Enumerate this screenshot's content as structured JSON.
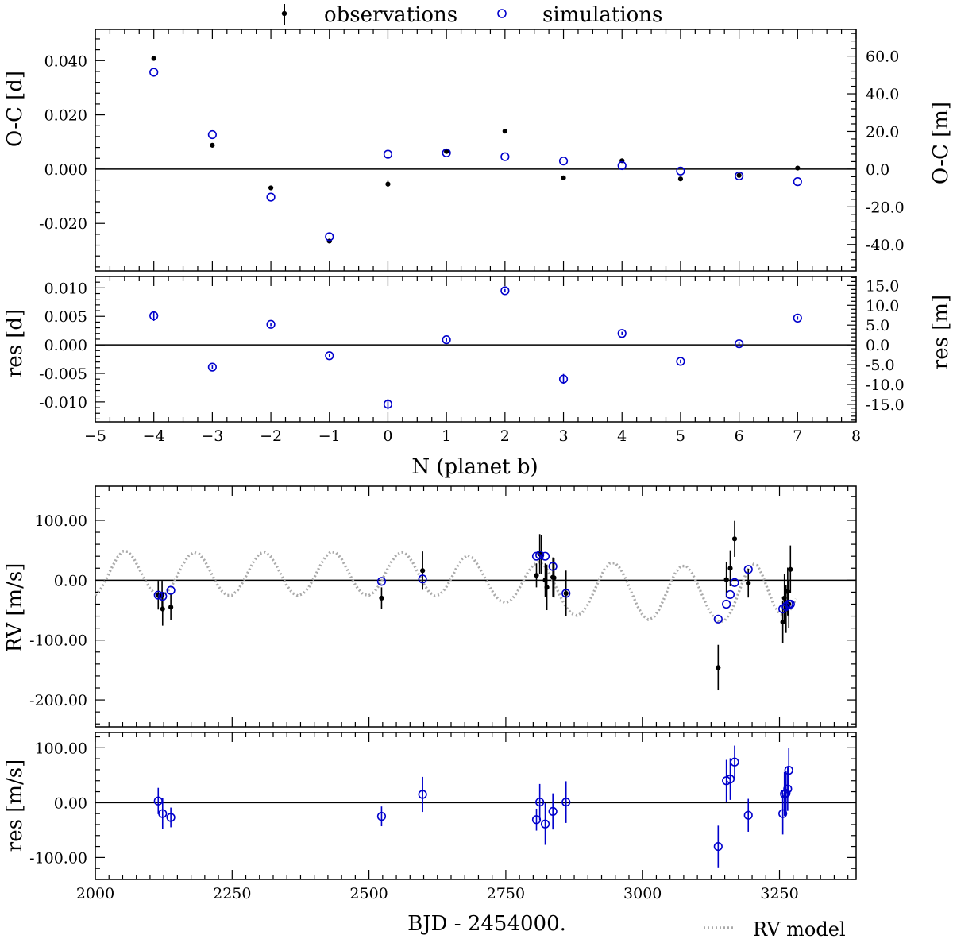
{
  "legend": {
    "observations": "observations",
    "simulations": "simulations",
    "rv_model": "RV model"
  },
  "colors": {
    "observations": "#000000",
    "simulations": "#0000cc",
    "rv_model": "#aaaaaa",
    "axes": "#000000"
  },
  "chart_data": [
    {
      "id": "oc",
      "type": "scatter",
      "xlabel": "",
      "ylabel": "O-C [d]",
      "ylabel_right": "O-C [m]",
      "xlim": [
        -5,
        8
      ],
      "ylim": [
        -0.0375,
        0.0515
      ],
      "yticks": [
        -0.02,
        0.0,
        0.02,
        0.04
      ],
      "ytick_labels": [
        "-0.020",
        "0.000",
        "0.020",
        "0.040"
      ],
      "yticks_right": [
        -40,
        -20,
        0,
        20,
        40,
        60
      ],
      "ytick_labels_right": [
        "-40.0",
        "-20.0",
        "0.0",
        "20.0",
        "40.0",
        "60.0"
      ],
      "right_scale_per_day": 1440,
      "zero_line": true,
      "series": [
        {
          "name": "observations",
          "x": [
            -4,
            -3,
            -2,
            -1,
            0,
            1,
            2,
            3,
            4,
            5,
            6,
            7
          ],
          "y": [
            0.0408,
            0.0088,
            -0.0069,
            -0.0265,
            -0.0055,
            0.0065,
            0.014,
            -0.0032,
            0.0031,
            -0.0036,
            -0.0023,
            0.0004
          ],
          "yerr": [
            0.0003,
            0.0003,
            0.0003,
            0.0003,
            0.0012,
            0.0003,
            0.0003,
            0.0003,
            0.0003,
            0.0003,
            0.0003,
            0.0003
          ]
        },
        {
          "name": "simulations",
          "x": [
            -4,
            -3,
            -2,
            -1,
            0,
            1,
            2,
            3,
            4,
            5,
            6,
            7
          ],
          "y": [
            0.0357,
            0.0127,
            -0.0103,
            -0.0249,
            0.0055,
            0.006,
            0.0046,
            0.003,
            0.0013,
            -0.0007,
            -0.0025,
            -0.0046
          ]
        }
      ]
    },
    {
      "id": "oc_res",
      "type": "scatter",
      "xlabel": "N (planet b)",
      "ylabel": "res [d]",
      "ylabel_right": "res [m]",
      "xlim": [
        -5,
        8
      ],
      "xticks": [
        -5,
        -4,
        -3,
        -2,
        -1,
        0,
        1,
        2,
        3,
        4,
        5,
        6,
        7,
        8
      ],
      "xtick_labels": [
        "−5",
        "−4",
        "−3",
        "−2",
        "−1",
        "0",
        "1",
        "2",
        "3",
        "4",
        "5",
        "6",
        "7",
        "8"
      ],
      "ylim": [
        -0.0135,
        0.012
      ],
      "yticks": [
        -0.01,
        -0.005,
        0.0,
        0.005,
        0.01
      ],
      "ytick_labels": [
        "-0.010",
        "-0.005",
        "0.000",
        "0.005",
        "0.010"
      ],
      "yticks_right": [
        -15,
        -10,
        -5,
        0,
        5,
        10,
        15
      ],
      "ytick_labels_right": [
        "-15.0",
        "-10.0",
        "-5.0",
        "0.0",
        "5.0",
        "10.0",
        "15.0"
      ],
      "right_scale_per_day": 1440,
      "zero_line": true,
      "series": [
        {
          "name": "residuals",
          "x": [
            -4,
            -3,
            -2,
            -1,
            0,
            1,
            2,
            3,
            4,
            5,
            6,
            7
          ],
          "y": [
            0.0051,
            -0.0039,
            0.0036,
            -0.0019,
            -0.0104,
            0.0009,
            0.0095,
            -0.006,
            0.002,
            -0.0029,
            0.0002,
            0.0047
          ],
          "yerr": [
            0.0009,
            0.0003,
            0.0003,
            0.0003,
            0.0009,
            0.0003,
            0.0003,
            0.0009,
            0.0003,
            0.0003,
            0.0003,
            0.0003
          ]
        }
      ]
    },
    {
      "id": "rv",
      "type": "scatter",
      "xlabel": "",
      "ylabel": "RV [m/s]",
      "xlim": [
        2000,
        3390
      ],
      "ylim": [
        -245,
        157
      ],
      "yticks": [
        -200,
        -100,
        0,
        100
      ],
      "ytick_labels": [
        "-200.00",
        "-100.00",
        "0.00",
        "100.00"
      ],
      "zero_line": true,
      "model": {
        "name": "RV model",
        "x": [
          2000,
          2010,
          2020,
          2030,
          2040,
          2050,
          2060,
          2070,
          2080,
          2090,
          2100,
          2110,
          2120,
          2130,
          2140,
          2150,
          2160,
          2170,
          2180,
          2190,
          2200,
          2210,
          2220,
          2230,
          2240,
          2250,
          2260,
          2270,
          2280,
          2290,
          2300,
          2310,
          2320,
          2330,
          2340,
          2350,
          2360,
          2370,
          2380,
          2390,
          2400,
          2410,
          2420,
          2430,
          2440,
          2450,
          2460,
          2470,
          2480,
          2490,
          2500,
          2510,
          2520,
          2530,
          2540,
          2550,
          2560,
          2570,
          2580,
          2590,
          2600,
          2610,
          2620,
          2630,
          2640,
          2650,
          2660,
          2670,
          2680,
          2690,
          2700,
          2710,
          2720,
          2730,
          2740,
          2750,
          2760,
          2770,
          2780,
          2790,
          2800,
          2810,
          2820,
          2830,
          2840,
          2850,
          2860,
          2870,
          2880,
          2890,
          2900,
          2910,
          2920,
          2930,
          2940,
          2950,
          2960,
          2970,
          2980,
          2990,
          3000,
          3010,
          3020,
          3030,
          3040,
          3050,
          3060,
          3070,
          3080,
          3090,
          3100,
          3110,
          3120,
          3130,
          3140,
          3150,
          3160,
          3170,
          3180,
          3190,
          3200,
          3210,
          3220,
          3230,
          3240,
          3250,
          3260,
          3270,
          3280
        ],
        "y": [
          -25.0,
          -14.5,
          2.0,
          20.8,
          37.9,
          48.4,
          47.7,
          36.9,
          19.6,
          1.2,
          -14.0,
          -23.8,
          -25.9,
          -20.9,
          -8.9,
          8.3,
          26.3,
          40.3,
          46.6,
          43.7,
          32.4,
          15.2,
          -3.0,
          -17.2,
          -25.1,
          -25.2,
          -16.9,
          -2.6,
          15.1,
          32.5,
          44.4,
          47.2,
          40.1,
          26.0,
          8.0,
          -9.1,
          -21.5,
          -26.0,
          -22.4,
          -11.8,
          4.4,
          22.9,
          38.8,
          47.4,
          46.1,
          35.5,
          18.3,
          0.1,
          -14.6,
          -23.8,
          -25.4,
          -19.6,
          -6.6,
          11.5,
          29.5,
          42.3,
          47.1,
          42.4,
          29.6,
          11.6,
          -6.3,
          -19.9,
          -26.4,
          -23.8,
          -13.3,
          2.5,
          20.7,
          35.4,
          41.7,
          37.0,
          23.8,
          7.0,
          -10.5,
          -25.1,
          -34.6,
          -37.7,
          -33.1,
          -21.0,
          -4.4,
          12.6,
          25.4,
          30.3,
          25.0,
          10.8,
          -8.2,
          -28.0,
          -44.8,
          -55.7,
          -59.3,
          -54.1,
          -40.4,
          -21.2,
          -0.2,
          17.8,
          28.4,
          28.7,
          18.5,
          0.7,
          -21.2,
          -42.4,
          -58.6,
          -65.9,
          -62.5,
          -49.0,
          -28.7,
          -6.2,
          13.0,
          23.6,
          23.4,
          12.3,
          -5.9,
          -27.5,
          -47.7,
          -62.7,
          -69.7,
          -67.4,
          -54.9,
          -34.2,
          -9.3,
          13.9,
          27.6,
          24.4,
          5.7,
          -19.0,
          -41.6,
          -55.9,
          -58.0,
          -48.4,
          -31.1
        ]
      },
      "series": [
        {
          "name": "observations",
          "x": [
            2115,
            2122,
            2123,
            2138,
            2523,
            2598,
            2806,
            2812,
            2815,
            2822,
            2825,
            2836,
            2838,
            2860,
            3138,
            3153,
            3160,
            3168,
            3193,
            3256,
            3259,
            3262,
            3265,
            3267,
            3270
          ],
          "y": [
            -25,
            -25,
            -48,
            -45,
            -30,
            16,
            8,
            44,
            43,
            0,
            -12,
            5,
            4,
            -22,
            -146,
            1,
            20,
            69,
            -5,
            -70,
            -30,
            -48,
            -19,
            -40,
            18
          ],
          "yerr": [
            24,
            24,
            28,
            22,
            18,
            32,
            20,
            33,
            33,
            28,
            38,
            33,
            33,
            38,
            38,
            30,
            30,
            30,
            24,
            35,
            40,
            40,
            40,
            40,
            40
          ]
        },
        {
          "name": "simulations",
          "x": [
            2115,
            2123,
            2138,
            2523,
            2598,
            2806,
            2812,
            2822,
            2836,
            2860,
            3138,
            3153,
            3160,
            3168,
            3193,
            3256,
            3262,
            3267,
            3270
          ],
          "y": [
            -25,
            -27,
            -17,
            -2,
            2,
            40,
            42,
            40,
            23,
            -22,
            -65,
            -40,
            -24,
            -4,
            18,
            -48,
            -44,
            -40,
            -40
          ]
        }
      ]
    },
    {
      "id": "rv_res",
      "type": "scatter",
      "xlabel": "BJD - 2454000.",
      "ylabel": "res [m/s]",
      "xlim": [
        2000,
        3390
      ],
      "xticks": [
        2000,
        2250,
        2500,
        2750,
        3000,
        3250
      ],
      "xtick_labels": [
        "2000",
        "2250",
        "2500",
        "2750",
        "3000",
        "3250"
      ],
      "ylim": [
        -140,
        128
      ],
      "yticks": [
        -100,
        0,
        100
      ],
      "ytick_labels": [
        "-100.00",
        "0.00",
        "100.00"
      ],
      "zero_line": true,
      "series": [
        {
          "name": "residuals",
          "x": [
            2115,
            2123,
            2138,
            2523,
            2598,
            2806,
            2812,
            2822,
            2836,
            2860,
            3138,
            3153,
            3160,
            3168,
            3193,
            3256,
            3259,
            3262,
            3265,
            3267
          ],
          "y": [
            3,
            -20,
            -27,
            -25,
            15,
            -31,
            1,
            -39,
            -16,
            1,
            -80,
            40,
            43,
            74,
            -23,
            -20,
            16,
            17,
            25,
            59
          ],
          "yerr": [
            24,
            28,
            18,
            18,
            32,
            20,
            33,
            38,
            33,
            38,
            38,
            38,
            38,
            30,
            30,
            38,
            40,
            40,
            40,
            40
          ]
        }
      ]
    }
  ]
}
